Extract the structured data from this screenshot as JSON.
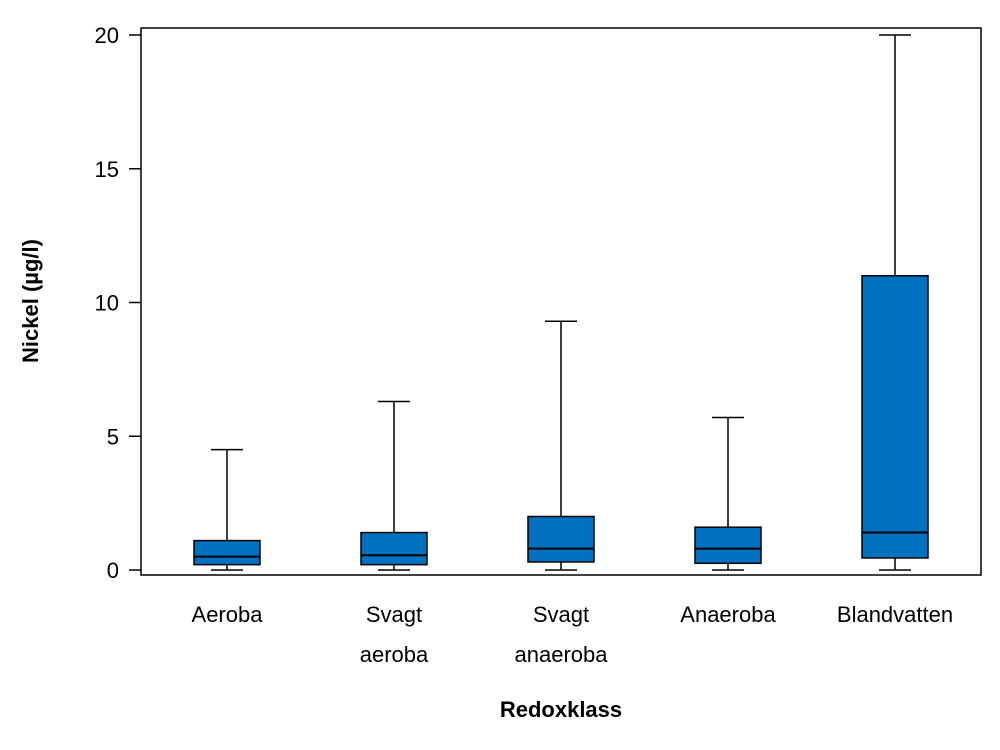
{
  "chart_data": {
    "type": "box",
    "xlabel": "Redoxklass",
    "ylabel": "Nickel (µg/l)",
    "ylim": [
      0,
      20
    ],
    "yticks": [
      "0",
      "5",
      "10",
      "15",
      "20"
    ],
    "box_color": "#0070C0",
    "grid": false,
    "categories": [
      {
        "lines": [
          "Aeroba"
        ],
        "min": 0.0,
        "q1": 0.2,
        "median": 0.5,
        "q3": 1.1,
        "max": 4.5
      },
      {
        "lines": [
          "Svagt",
          "aeroba"
        ],
        "min": 0.0,
        "q1": 0.2,
        "median": 0.55,
        "q3": 1.4,
        "max": 6.3
      },
      {
        "lines": [
          "Svagt",
          "anaeroba"
        ],
        "min": 0.0,
        "q1": 0.3,
        "median": 0.8,
        "q3": 2.0,
        "max": 9.3
      },
      {
        "lines": [
          "Anaeroba"
        ],
        "min": 0.0,
        "q1": 0.25,
        "median": 0.8,
        "q3": 1.6,
        "max": 5.7
      },
      {
        "lines": [
          "Blandvatten"
        ],
        "min": 0.0,
        "q1": 0.45,
        "median": 1.4,
        "q3": 11.0,
        "max": 20.0
      }
    ]
  }
}
